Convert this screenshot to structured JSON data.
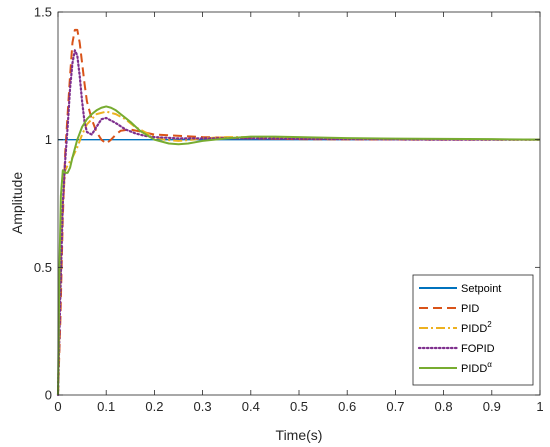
{
  "chart_data": {
    "type": "line",
    "xlabel": "Time(s)",
    "ylabel": "Amplitude",
    "xlim": [
      0,
      1
    ],
    "ylim": [
      0,
      1.5
    ],
    "xticks": [
      0,
      0.1,
      0.2,
      0.3,
      0.4,
      0.5,
      0.6,
      0.7,
      0.8,
      0.9,
      1
    ],
    "xtick_labels": [
      "0",
      "0.1",
      "0.2",
      "0.3",
      "0.4",
      "0.5",
      "0.6",
      "0.7",
      "0.8",
      "0.9",
      "1"
    ],
    "yticks": [
      0,
      0.5,
      1,
      1.5
    ],
    "ytick_labels": [
      "0",
      "0.5",
      "1",
      "1.5"
    ],
    "grid": false,
    "legend_position": "bottom-right",
    "series": [
      {
        "name": "Setpoint",
        "legend_main": "Setpoint",
        "legend_sup": "",
        "color": "#0072BD",
        "dash": "solid",
        "x": [
          0,
          1
        ],
        "y": [
          1,
          1
        ]
      },
      {
        "name": "PID",
        "legend_main": "PID",
        "legend_sup": "",
        "color": "#D95319",
        "dash": "dashed",
        "x": [
          0,
          0.005,
          0.01,
          0.015,
          0.02,
          0.025,
          0.03,
          0.035,
          0.04,
          0.045,
          0.05,
          0.055,
          0.06,
          0.07,
          0.08,
          0.09,
          0.1,
          0.11,
          0.12,
          0.13,
          0.15,
          0.2,
          0.3,
          0.4,
          0.5,
          0.6,
          0.8,
          1.0
        ],
        "y": [
          0,
          0.3,
          0.7,
          0.95,
          1.1,
          1.25,
          1.38,
          1.43,
          1.43,
          1.38,
          1.3,
          1.22,
          1.15,
          1.08,
          1.03,
          1.0,
          0.985,
          1.0,
          1.02,
          1.035,
          1.04,
          1.02,
          1.01,
          1.005,
          1.002,
          1.001,
          1.0,
          1.0
        ]
      },
      {
        "name": "PIDD²",
        "legend_main": "PIDD",
        "legend_sup": "2",
        "color": "#EDB120",
        "dash": "dashdot",
        "x": [
          0,
          0.005,
          0.01,
          0.015,
          0.02,
          0.03,
          0.04,
          0.05,
          0.06,
          0.08,
          0.1,
          0.12,
          0.14,
          0.16,
          0.18,
          0.2,
          0.22,
          0.25,
          0.28,
          0.3,
          0.35,
          0.4,
          0.45,
          0.5,
          0.6,
          0.7,
          0.8,
          1.0
        ],
        "y": [
          0,
          0.45,
          0.75,
          0.88,
          0.9,
          0.93,
          0.97,
          1.02,
          1.06,
          1.1,
          1.11,
          1.1,
          1.08,
          1.05,
          1.03,
          1.01,
          1.0,
          0.995,
          1.0,
          1.005,
          1.01,
          1.01,
          1.008,
          1.005,
          1.003,
          1.002,
          1.001,
          1.0
        ]
      },
      {
        "name": "FOPID",
        "legend_main": "FOPID",
        "legend_sup": "",
        "color": "#7E2F8E",
        "dash": "dotted",
        "x": [
          0,
          0.005,
          0.01,
          0.015,
          0.02,
          0.025,
          0.03,
          0.035,
          0.04,
          0.045,
          0.05,
          0.055,
          0.06,
          0.07,
          0.08,
          0.09,
          0.1,
          0.11,
          0.12,
          0.14,
          0.16,
          0.18,
          0.2,
          0.25,
          0.3,
          0.4,
          0.5,
          0.6,
          0.8,
          1.0
        ],
        "y": [
          0,
          0.4,
          0.75,
          0.92,
          1.05,
          1.2,
          1.3,
          1.35,
          1.33,
          1.25,
          1.15,
          1.07,
          1.03,
          1.02,
          1.05,
          1.08,
          1.085,
          1.075,
          1.065,
          1.04,
          1.025,
          1.015,
          1.01,
          1.005,
          1.005,
          1.005,
          1.003,
          1.002,
          1.0,
          1.0
        ]
      },
      {
        "name": "PIDD^α",
        "legend_main": "PIDD",
        "legend_sup": "α",
        "color": "#77AC30",
        "dash": "solid",
        "x": [
          0,
          0.003,
          0.006,
          0.01,
          0.015,
          0.02,
          0.025,
          0.03,
          0.04,
          0.05,
          0.06,
          0.07,
          0.08,
          0.09,
          0.1,
          0.11,
          0.12,
          0.13,
          0.15,
          0.17,
          0.2,
          0.23,
          0.25,
          0.27,
          0.3,
          0.35,
          0.4,
          0.45,
          0.5,
          0.6,
          0.7,
          0.8,
          0.9,
          1.0
        ],
        "y": [
          0,
          0.5,
          0.78,
          0.88,
          0.87,
          0.87,
          0.89,
          0.93,
          1.0,
          1.05,
          1.08,
          1.1,
          1.115,
          1.125,
          1.13,
          1.125,
          1.115,
          1.1,
          1.07,
          1.035,
          1.0,
          0.985,
          0.982,
          0.985,
          0.995,
          1.005,
          1.012,
          1.012,
          1.01,
          1.006,
          1.004,
          1.003,
          1.002,
          1.0
        ]
      }
    ]
  }
}
